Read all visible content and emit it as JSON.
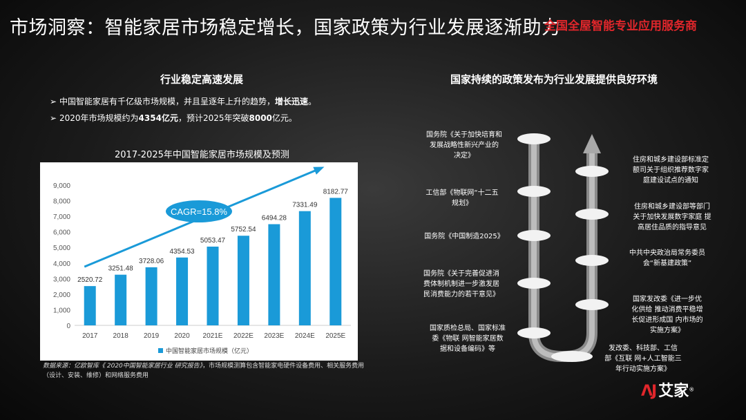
{
  "title": "市场洞察：智能家居市场稳定增长，国家政策为行业发展逐渐助力",
  "brand_tag": "全国全屋智能专业应用服务商",
  "left": {
    "heading": "行业稳定高速发展",
    "bullets": [
      {
        "pre": "中国智能家居有千亿级市场规模，并且呈逐年上升的趋势，",
        "bold": "增长迅速",
        "post": "。"
      },
      {
        "pre": "2020年市场规模约为",
        "bold": "4354亿元",
        "mid": "，预计2025年突破",
        "bold2": "8000",
        "post": "亿元。"
      }
    ],
    "source_label": "数据来源：亿欧智库《 2020中国智能家居行业 研究报告》",
    "source_rest": "，市场规模测算包含智能家电硬件设备费用、相关服务费用（设计、安装、维修）和网络服务费用"
  },
  "chart_data": {
    "type": "bar",
    "title": "2017-2025年中国智能家居市场规模及预测",
    "categories": [
      "2017",
      "2018",
      "2019",
      "2020",
      "2021E",
      "2022E",
      "2023E",
      "2024E",
      "2025E"
    ],
    "series": [
      {
        "name": "中国智能家居市场规模（亿元）",
        "values": [
          2520.72,
          3251.48,
          3728.06,
          4354.53,
          5053.47,
          5752.54,
          6494.28,
          7331.49,
          8182.77
        ]
      }
    ],
    "data_labels": [
      "2520.72",
      "3251.48",
      "3728.06",
      "4354.53",
      "5053.47",
      "5752.54",
      "6494.28",
      "7331.49",
      "8182.77"
    ],
    "yticks": [
      "0",
      "1,000",
      "2,000",
      "3,000",
      "4,000",
      "5,000",
      "6,000",
      "7,000",
      "8,000",
      "9,000"
    ],
    "ylim": [
      0,
      9000
    ],
    "annotation": "CAGR=15.8%",
    "bar_color": "#1a9ad8",
    "legend_position": "bottom"
  },
  "right": {
    "heading": "国家持续的政策发布为行业发展提供良好环境",
    "left_items": [
      {
        "lines": [
          "国务院《关于加快培育和",
          "发展战略性新兴产业的",
          "决定》"
        ]
      },
      {
        "lines": [
          "工信部《物联网“十二五",
          "规划》"
        ]
      },
      {
        "lines": [
          "国务院《中国制造2025》"
        ]
      },
      {
        "lines": [
          "国务院《关于完善促进消",
          "费体制机制进一步激发居",
          "民消费能力的若干意见》"
        ]
      },
      {
        "lines": [
          "国家质检总局、国家标准",
          "委《物联 网智能家居数",
          "据和设备编码》等"
        ]
      }
    ],
    "right_items": [
      {
        "lines": [
          "住房和城乡建设部标准定",
          "额司关于组织推荐数字家",
          "庭建设试点的通知"
        ]
      },
      {
        "lines": [
          "住房和城乡建设部等部门",
          "关于加快发展数字家庭 提",
          "高居住品质的指导意见"
        ]
      },
      {
        "lines": [
          "中共中央政治局常务委员",
          "会“新基建政策”"
        ]
      },
      {
        "lines": [
          "国家发改委《进一步优",
          "化供给 推动消费平稳增",
          "长促进形成国 内市场的",
          "实施方案》"
        ]
      },
      {
        "lines": [
          "发改委、科技部、工信",
          "部《互联 网+人工智能三",
          "年行动实施方案》"
        ]
      }
    ]
  },
  "logo": {
    "mark": "ΛJ",
    "name": "艾家",
    "reg": "®"
  }
}
